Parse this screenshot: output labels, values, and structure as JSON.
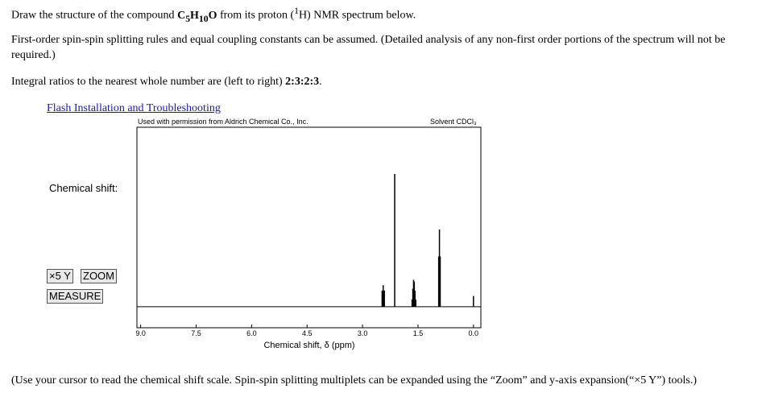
{
  "question": {
    "line1": {
      "before": "Draw the structure of the compound ",
      "formula": [
        "C",
        "5",
        "H",
        "10",
        "O"
      ],
      "middle": " from its proton (",
      "sup": "1",
      "after": "H) NMR spectrum below."
    },
    "line2": "First-order spin-spin splitting rules and equal coupling constants can be assumed. (Detailed analysis of any non-first order portions of the spectrum will not be required.)",
    "line3": {
      "before": "Integral ratios to the nearest whole number are (left to right) ",
      "ratio": "2:3:2:3",
      "after": "."
    },
    "link": "Flash Installation and Troubleshooting",
    "footer": "(Use your cursor to read the chemical shift scale. Spin-spin splitting multiplets can be expanded using the “Zoom” and y-axis expansion(“×5 Y”) tools.)"
  },
  "panel": {
    "shift_label": "Chemical shift:",
    "buttons": [
      "×5 Y",
      "ZOOM",
      "MEASURE"
    ]
  },
  "spectrum": {
    "type": "nmr",
    "credit": "Used with permission from Aldrich Chemical Co., Inc.",
    "solvent": "Solvent CDCl₃",
    "xlabel": "Chemical shift, δ (ppm)",
    "xlim": [
      9.1,
      -0.2
    ],
    "ylim": [
      -11.7,
      100
    ],
    "xticks": [
      {
        "value": 9,
        "label": "9.0"
      },
      7.5,
      {
        "value": 6,
        "label": "6.0"
      },
      4.5,
      {
        "value": 3,
        "label": "3.0"
      },
      1.5,
      {
        "value": 0,
        "label": "0.0"
      }
    ],
    "peaks": {
      "x": [
        2.47,
        2.44,
        2.41,
        2.13,
        1.66,
        1.64,
        1.62,
        1.6,
        1.58,
        1.56,
        0.94,
        0.92,
        0.9,
        0.0
      ],
      "values": [
        9,
        12,
        9,
        74,
        4,
        10,
        15,
        14,
        9,
        4,
        28,
        43,
        28,
        6
      ]
    },
    "color": "#000000"
  }
}
